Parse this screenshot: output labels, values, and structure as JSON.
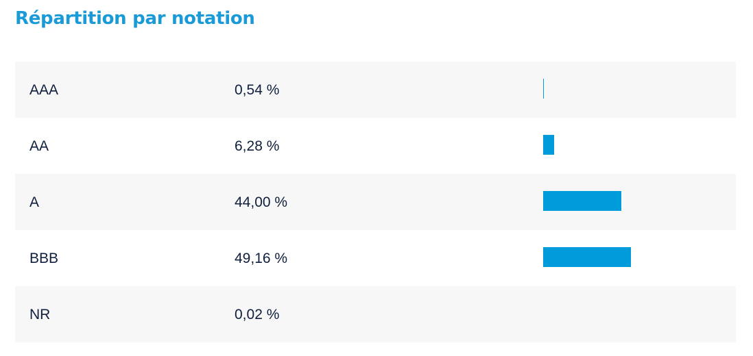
{
  "title": "Répartition par notation",
  "colors": {
    "title": "#1a9ad6",
    "bar": "#009bdb",
    "text": "#0f1f3d",
    "row_shaded": "#f7f7f7"
  },
  "chart_data": {
    "type": "bar",
    "orientation": "horizontal",
    "title": "Répartition par notation",
    "categories": [
      "AAA",
      "AA",
      "A",
      "BBB",
      "NR"
    ],
    "values": [
      0.54,
      6.28,
      44.0,
      49.16,
      0.02
    ],
    "value_labels": [
      "0,54 %",
      "6,28 %",
      "44,00 %",
      "49,16 %",
      "0,02 %"
    ],
    "unit": "%",
    "xlim": [
      0,
      100
    ],
    "grid": false
  }
}
